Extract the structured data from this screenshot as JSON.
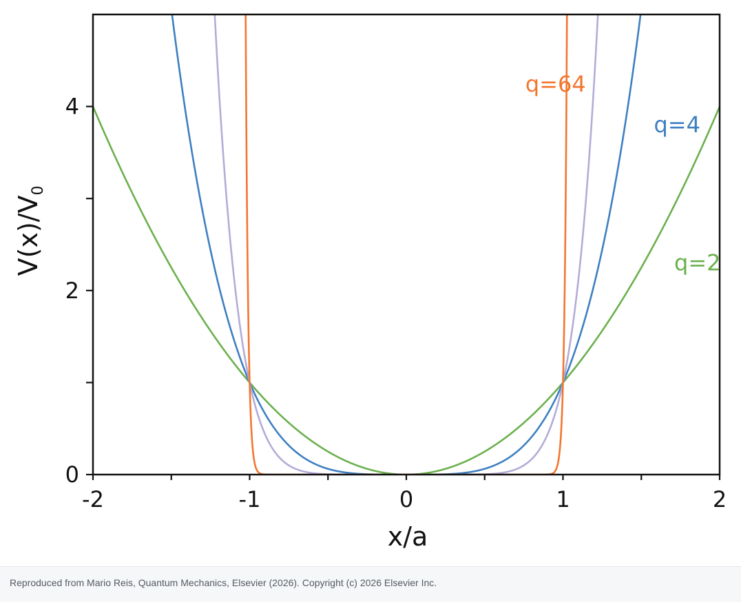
{
  "chart_data": {
    "type": "line",
    "title": "",
    "xlabel": "x/a",
    "ylabel": "V(x)/V",
    "ylabel_subscript": "0",
    "xlim": [
      -2,
      2
    ],
    "ylim": [
      0,
      5
    ],
    "x_ticks": [
      -2,
      -1.5,
      -1,
      -0.5,
      0,
      0.5,
      1,
      1.5,
      2
    ],
    "x_tick_labels": [
      {
        "value": -2,
        "text": "-2"
      },
      {
        "value": -1,
        "text": "-1"
      },
      {
        "value": 0,
        "text": "0"
      },
      {
        "value": 1,
        "text": "1"
      },
      {
        "value": 2,
        "text": "2"
      }
    ],
    "y_ticks": [
      0,
      1,
      2,
      3,
      4
    ],
    "y_tick_labels": [
      {
        "value": 0,
        "text": "0"
      },
      {
        "value": 2,
        "text": "2"
      },
      {
        "value": 4,
        "text": "4"
      }
    ],
    "grid": false,
    "series": [
      {
        "name": "q=2",
        "exponent": 2,
        "color": "#6ab04c",
        "label_at": {
          "x": 1.71,
          "y": 2.22
        }
      },
      {
        "name": "q=4",
        "exponent": 4,
        "color": "#3d7fc1",
        "label_at": {
          "x": 1.58,
          "y": 3.72
        }
      },
      {
        "name": "",
        "exponent": 8,
        "color": "#b3acd8"
      },
      {
        "name": "q=64",
        "exponent": 64,
        "color": "#f2762e",
        "label_at": {
          "x": 0.76,
          "y": 4.16
        }
      }
    ]
  },
  "footer": {
    "text": "Reproduced from Mario Reis, Quantum Mechanics, Elsevier (2026). Copyright (c) 2026 Elsevier Inc."
  }
}
